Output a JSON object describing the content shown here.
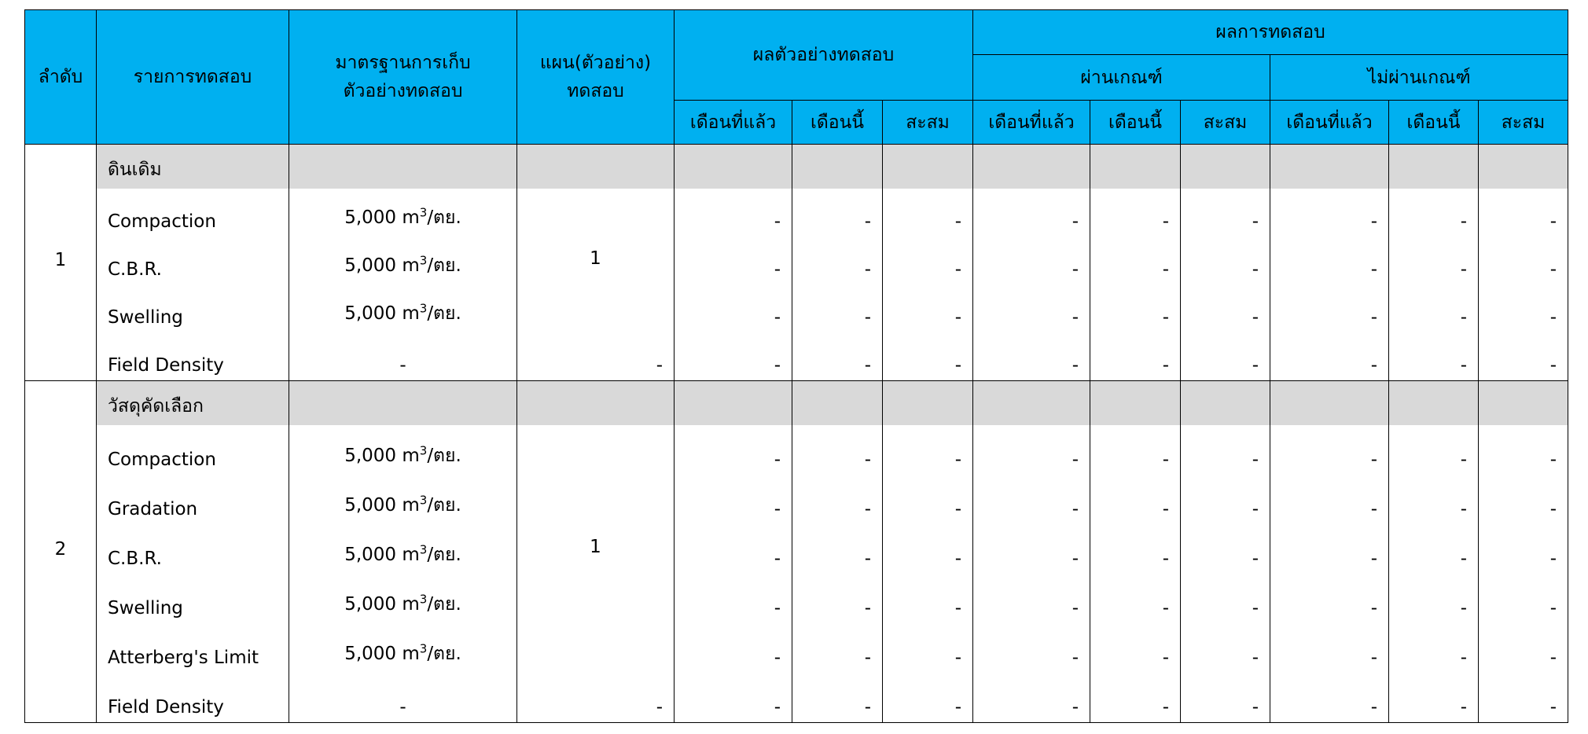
{
  "header": {
    "no": "ลำดับ",
    "item": "รายการทดสอบ",
    "standard_line1": "มาตรฐานการเก็บ",
    "standard_line2": "ตัวอย่างทดสอบ",
    "plan_line1": "แผน(ตัวอย่าง)",
    "plan_line2": "ทดสอบ",
    "sample_results": "ผลตัวอย่างทดสอบ",
    "test_results": "ผลการทดสอบ",
    "pass": "ผ่านเกณฑ์",
    "fail": "ไม่ผ่านเกณฑ์",
    "sub": [
      "เดือนที่แล้ว",
      "เดือนนี้",
      "สะสม",
      "เดือนที่แล้ว",
      "เดือนนี้",
      "สะสม",
      "เดือนที่แล้ว",
      "เดือนนี้",
      "สะสม"
    ]
  },
  "colors": {
    "header_bg": "#00b0f0",
    "group_bg": "#d9d9d9"
  },
  "sections": [
    {
      "no": "1",
      "group": "ดินเดิม",
      "plan": "1",
      "items": [
        {
          "name": "Compaction",
          "std_base": "5,000 m",
          "std_sup": "3",
          "std_suffix": "/ตย.",
          "values": [
            "-",
            "-",
            "-",
            "-",
            "-",
            "-",
            "-",
            "-",
            "-"
          ]
        },
        {
          "name": "C.B.R.",
          "std_base": "5,000 m",
          "std_sup": "3",
          "std_suffix": "/ตย.",
          "values": [
            "-",
            "-",
            "-",
            "-",
            "-",
            "-",
            "-",
            "-",
            "-"
          ]
        },
        {
          "name": "Swelling",
          "std_base": "5,000 m",
          "std_sup": "3",
          "std_suffix": "/ตย.",
          "values": [
            "-",
            "-",
            "-",
            "-",
            "-",
            "-",
            "-",
            "-",
            "-"
          ]
        }
      ],
      "final": {
        "name": "Field Density",
        "standard": "-",
        "plan": "-",
        "values": [
          "-",
          "-",
          "-",
          "-",
          "-",
          "-",
          "-",
          "-",
          "-"
        ]
      }
    },
    {
      "no": "2",
      "group": "วัสดุคัดเลือก",
      "plan": "1",
      "items": [
        {
          "name": "Compaction",
          "std_base": "5,000 m",
          "std_sup": "3",
          "std_suffix": "/ตย.",
          "values": [
            "-",
            "-",
            "-",
            "-",
            "-",
            "-",
            "-",
            "-",
            "-"
          ]
        },
        {
          "name": "Gradation",
          "std_base": "5,000 m",
          "std_sup": "3",
          "std_suffix": "/ตย.",
          "values": [
            "-",
            "-",
            "-",
            "-",
            "-",
            "-",
            "-",
            "-",
            "-"
          ]
        },
        {
          "name": "C.B.R.",
          "std_base": "5,000 m",
          "std_sup": "3",
          "std_suffix": "/ตย.",
          "values": [
            "-",
            "-",
            "-",
            "-",
            "-",
            "-",
            "-",
            "-",
            "-"
          ]
        },
        {
          "name": "Swelling",
          "std_base": "5,000 m",
          "std_sup": "3",
          "std_suffix": "/ตย.",
          "values": [
            "-",
            "-",
            "-",
            "-",
            "-",
            "-",
            "-",
            "-",
            "-"
          ]
        },
        {
          "name": "Atterberg's Limit",
          "std_base": "5,000 m",
          "std_sup": "3",
          "std_suffix": "/ตย.",
          "values": [
            "-",
            "-",
            "-",
            "-",
            "-",
            "-",
            "-",
            "-",
            "-"
          ]
        }
      ],
      "final": {
        "name": "Field Density",
        "standard": "-",
        "plan": "-",
        "values": [
          "-",
          "-",
          "-",
          "-",
          "-",
          "-",
          "-",
          "-",
          "-"
        ]
      }
    }
  ]
}
